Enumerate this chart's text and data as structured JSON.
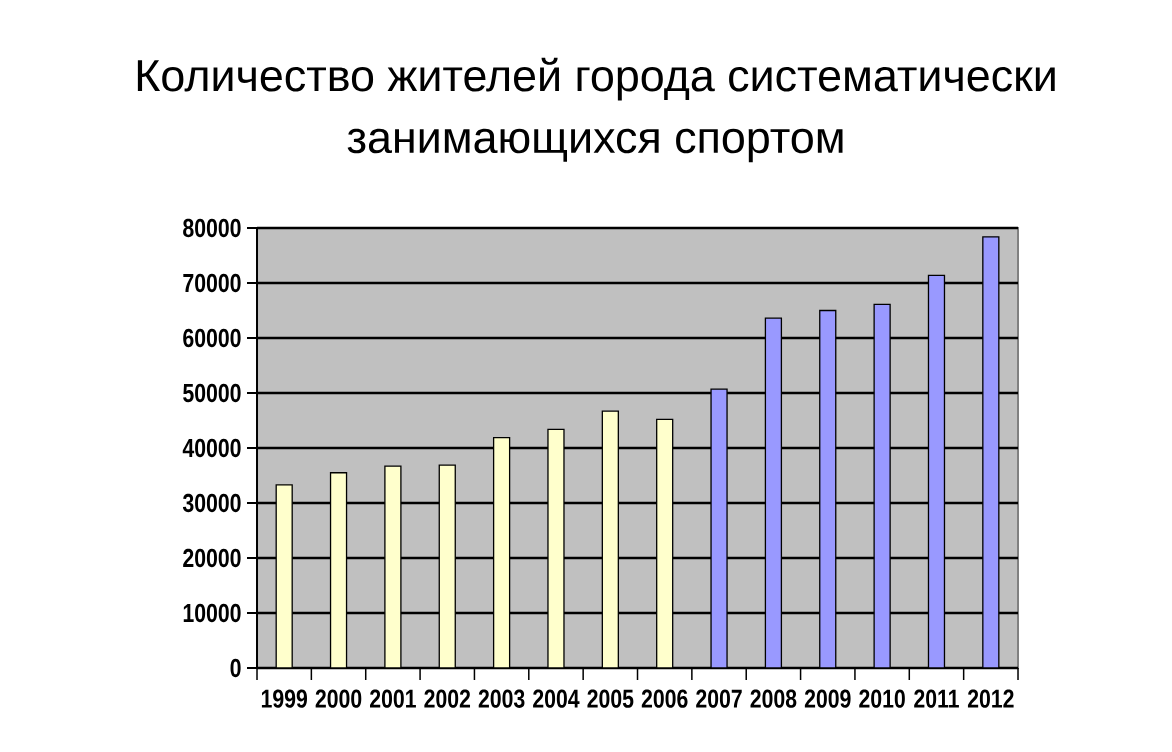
{
  "chart_data": {
    "type": "bar",
    "title": "Количество жителей города систематически занимающихся спортом",
    "categories": [
      "1999",
      "2000",
      "2001",
      "2002",
      "2003",
      "2004",
      "2005",
      "2006",
      "2007",
      "2008",
      "2009",
      "2010",
      "2011",
      "2012"
    ],
    "values": [
      33300,
      35500,
      36700,
      36900,
      41900,
      43400,
      46700,
      45200,
      50700,
      63600,
      65000,
      66100,
      71400,
      78400
    ],
    "colors": [
      "#ffffcc",
      "#ffffcc",
      "#ffffcc",
      "#ffffcc",
      "#ffffcc",
      "#ffffcc",
      "#ffffcc",
      "#ffffcc",
      "#9999ff",
      "#9999ff",
      "#9999ff",
      "#9999ff",
      "#9999ff",
      "#9999ff"
    ],
    "ylim": [
      0,
      80000
    ],
    "yticks": [
      0,
      10000,
      20000,
      30000,
      40000,
      50000,
      60000,
      70000,
      80000
    ],
    "grid": "y"
  }
}
